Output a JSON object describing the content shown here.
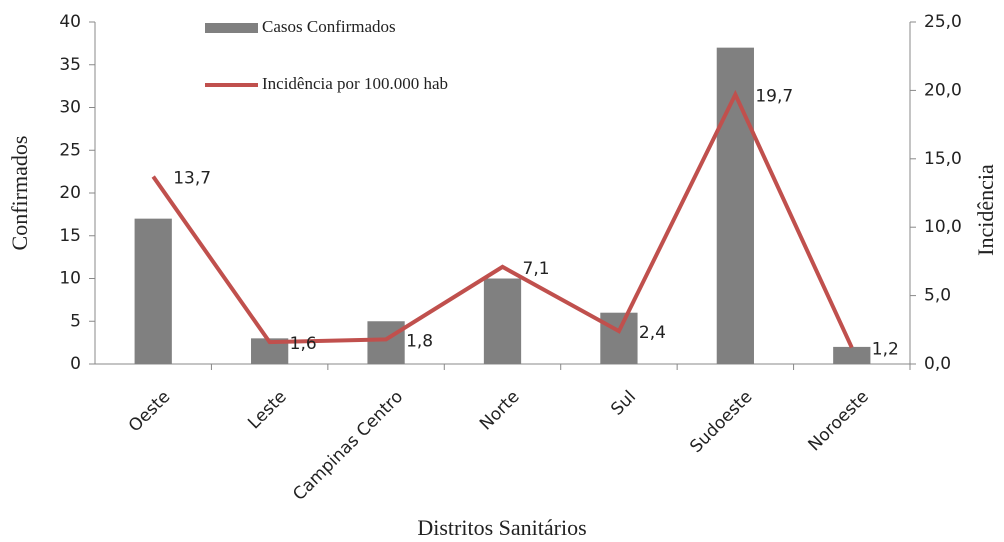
{
  "chart_data": {
    "type": "bar",
    "categories": [
      "Oeste",
      "Leste",
      "Campinas Centro",
      "Norte",
      "Sul",
      "Sudoeste",
      "Noroeste"
    ],
    "series": [
      {
        "name": "Casos Confirmados",
        "type": "bar",
        "color": "#808080",
        "values": [
          17,
          3,
          5,
          10,
          6,
          37,
          2
        ]
      },
      {
        "name": "Incidência por 100.000 hab",
        "type": "line",
        "axis": "y2",
        "color": "#c0504d",
        "values": [
          13.7,
          1.6,
          1.8,
          7.1,
          2.4,
          19.7,
          1.2
        ],
        "value_labels": [
          "13,7",
          "1,6",
          "1,8",
          "7,1",
          "2,4",
          "19,7",
          "1,2"
        ]
      }
    ],
    "x_label": "Distritos Sanitários",
    "y_label": "Confirmados",
    "y2_label": "Incidência",
    "ylim": [
      0,
      40
    ],
    "yticks": [
      0,
      5,
      10,
      15,
      20,
      25,
      30,
      35,
      40
    ],
    "y2lim": [
      0,
      25
    ],
    "y2ticks": [
      {
        "value": 0,
        "label": "0,0"
      },
      {
        "value": 5,
        "label": "5,0"
      },
      {
        "value": 10,
        "label": "10,0"
      },
      {
        "value": 15,
        "label": "15,0"
      },
      {
        "value": 20,
        "label": "20,0"
      },
      {
        "value": 25,
        "label": "25,0"
      }
    ],
    "grid": false
  }
}
